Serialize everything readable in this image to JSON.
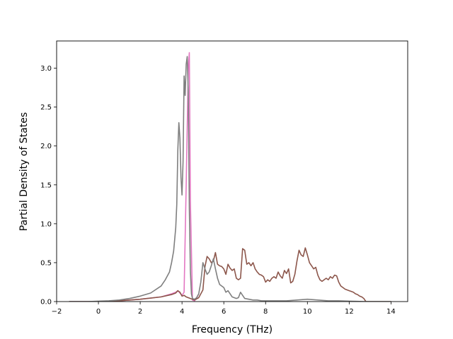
{
  "chart_data": {
    "type": "line",
    "title": "",
    "xlabel": "Frequency (THz)",
    "ylabel": "Partial Density of States",
    "xlim": [
      -2,
      14.8
    ],
    "ylim": [
      0,
      3.35
    ],
    "xticks": [
      -2,
      0,
      2,
      4,
      6,
      8,
      10,
      12,
      14
    ],
    "yticks": [
      0.0,
      0.5,
      1.0,
      1.5,
      2.0,
      2.5,
      3.0
    ],
    "xtick_labels": [
      "−2",
      "0",
      "2",
      "4",
      "6",
      "8",
      "10",
      "12",
      "14"
    ],
    "ytick_labels": [
      "0.0",
      "0.5",
      "1.0",
      "1.5",
      "2.0",
      "2.5",
      "3.0"
    ],
    "grid": false,
    "legend": "none",
    "series": [
      {
        "color": "#e377c2",
        "x": [
          -1.4,
          0,
          1,
          2,
          3,
          3.5,
          3.7,
          3.8,
          3.9,
          4.0,
          4.1,
          4.2,
          4.3,
          4.35,
          4.4,
          4.5,
          4.6,
          4.7,
          4.8
        ],
        "y": [
          0,
          0,
          0.01,
          0.03,
          0.06,
          0.1,
          0.12,
          0.14,
          0.11,
          0.08,
          0.12,
          1.5,
          3.0,
          3.2,
          1.3,
          0.02,
          0.01,
          0.05,
          0.1
        ]
      },
      {
        "color": "#8c564b",
        "x": [
          -1.4,
          0,
          0.5,
          1,
          1.5,
          2,
          2.5,
          3,
          3.5,
          3.7,
          3.8,
          3.9,
          4.0,
          4.1,
          4.2,
          4.3,
          4.4,
          4.5,
          4.6,
          4.8,
          5.0,
          5.1,
          5.2,
          5.3,
          5.4,
          5.5,
          5.6,
          5.7,
          5.8,
          5.9,
          6.0,
          6.1,
          6.2,
          6.3,
          6.4,
          6.5,
          6.6,
          6.7,
          6.8,
          6.9,
          7.0,
          7.1,
          7.2,
          7.3,
          7.4,
          7.5,
          7.6,
          7.7,
          7.8,
          7.9,
          8.0,
          8.1,
          8.2,
          8.3,
          8.4,
          8.5,
          8.6,
          8.7,
          8.8,
          8.9,
          9.0,
          9.1,
          9.2,
          9.3,
          9.4,
          9.5,
          9.6,
          9.7,
          9.8,
          9.9,
          10.0,
          10.1,
          10.2,
          10.3,
          10.4,
          10.5,
          10.6,
          10.7,
          10.8,
          10.9,
          11.0,
          11.1,
          11.2,
          11.3,
          11.4,
          11.5,
          11.6,
          11.7,
          11.8,
          11.9,
          12.0,
          12.1,
          12.2,
          12.3,
          12.4,
          12.5,
          12.6,
          12.7,
          12.75,
          12.8,
          13,
          14
        ],
        "y": [
          0,
          0,
          0.005,
          0.01,
          0.02,
          0.03,
          0.045,
          0.06,
          0.09,
          0.11,
          0.14,
          0.12,
          0.07,
          0.08,
          0.06,
          0.05,
          0.04,
          0.03,
          0.02,
          0.05,
          0.15,
          0.45,
          0.58,
          0.55,
          0.5,
          0.52,
          0.63,
          0.48,
          0.46,
          0.45,
          0.42,
          0.35,
          0.48,
          0.43,
          0.4,
          0.42,
          0.3,
          0.28,
          0.3,
          0.68,
          0.66,
          0.48,
          0.5,
          0.46,
          0.5,
          0.42,
          0.38,
          0.35,
          0.34,
          0.32,
          0.25,
          0.28,
          0.26,
          0.3,
          0.32,
          0.3,
          0.38,
          0.33,
          0.3,
          0.4,
          0.36,
          0.42,
          0.24,
          0.26,
          0.35,
          0.52,
          0.66,
          0.6,
          0.58,
          0.69,
          0.6,
          0.5,
          0.46,
          0.42,
          0.44,
          0.34,
          0.28,
          0.26,
          0.28,
          0.3,
          0.28,
          0.32,
          0.3,
          0.34,
          0.33,
          0.25,
          0.2,
          0.18,
          0.16,
          0.15,
          0.14,
          0.13,
          0.12,
          0.1,
          0.09,
          0.07,
          0.06,
          0.04,
          0.02,
          0.0,
          0,
          0
        ]
      },
      {
        "color": "#7f7f7f",
        "x": [
          -1.4,
          -0.5,
          0,
          0.5,
          1,
          1.5,
          2,
          2.5,
          3,
          3.2,
          3.4,
          3.5,
          3.6,
          3.7,
          3.75,
          3.8,
          3.85,
          3.9,
          3.95,
          4.0,
          4.05,
          4.1,
          4.15,
          4.2,
          4.25,
          4.3,
          4.35,
          4.4,
          4.45,
          4.5,
          4.6,
          4.7,
          4.8,
          4.9,
          5.0,
          5.1,
          5.2,
          5.3,
          5.4,
          5.5,
          5.6,
          5.7,
          5.8,
          5.9,
          6.0,
          6.1,
          6.2,
          6.3,
          6.4,
          6.5,
          6.6,
          6.7,
          6.8,
          6.9,
          7.0,
          7.2,
          7.4,
          7.6,
          7.8,
          8.0,
          8.5,
          9.0,
          9.5,
          10.0,
          10.5,
          11.0,
          11.5,
          12.0,
          12.5,
          12.8,
          13,
          14
        ],
        "y": [
          0,
          0,
          0.005,
          0.01,
          0.02,
          0.04,
          0.07,
          0.11,
          0.2,
          0.28,
          0.38,
          0.5,
          0.65,
          0.95,
          1.25,
          1.95,
          2.3,
          2.1,
          1.6,
          1.37,
          1.8,
          2.9,
          2.65,
          3.05,
          3.15,
          2.7,
          1.2,
          0.4,
          0.1,
          0.04,
          0.03,
          0.05,
          0.1,
          0.25,
          0.5,
          0.42,
          0.35,
          0.38,
          0.46,
          0.55,
          0.42,
          0.3,
          0.22,
          0.2,
          0.18,
          0.12,
          0.14,
          0.1,
          0.06,
          0.05,
          0.04,
          0.05,
          0.12,
          0.08,
          0.04,
          0.03,
          0.02,
          0.02,
          0.01,
          0.01,
          0.01,
          0.01,
          0.02,
          0.03,
          0.02,
          0.01,
          0.01,
          0.005,
          0.002,
          0,
          0,
          0
        ]
      }
    ]
  }
}
